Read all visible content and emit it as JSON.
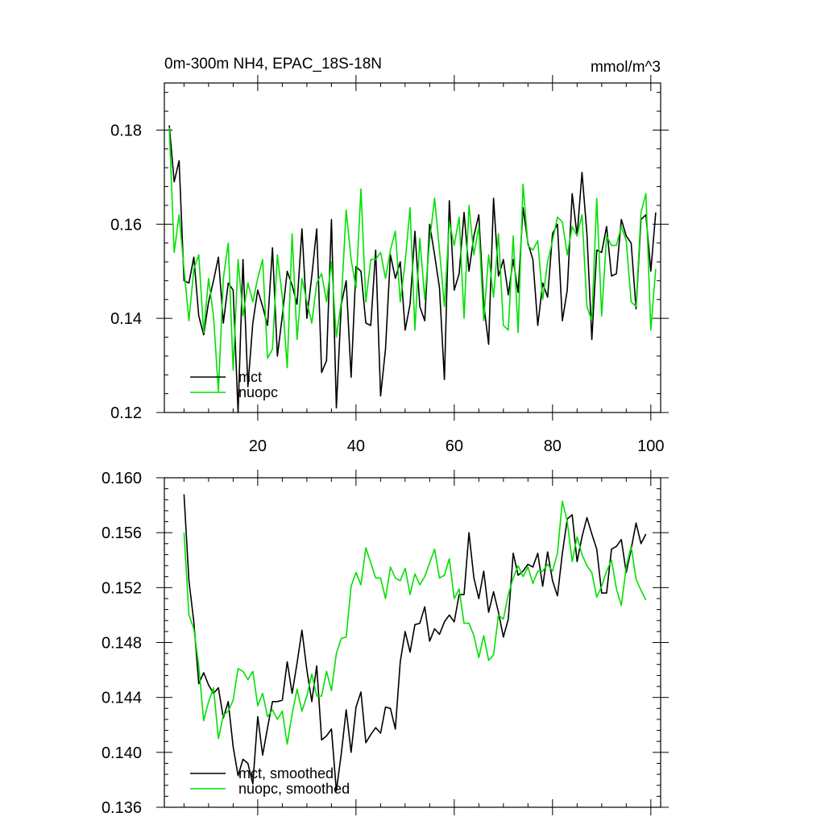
{
  "chart_data": [
    {
      "type": "line",
      "title": "0m-300m NH4, EPAC_18S-18N",
      "units": "mmol/m^3",
      "xlabel": "",
      "ylabel": "",
      "xlim": [
        1,
        102
      ],
      "ylim": [
        0.12,
        0.19
      ],
      "xticks": [
        20,
        40,
        60,
        80,
        100
      ],
      "xtick_labels": [
        "20",
        "40",
        "60",
        "80",
        "100"
      ],
      "yticks": [
        0.12,
        0.14,
        0.16,
        0.18
      ],
      "ytick_labels": [
        "0.12",
        "0.14",
        "0.16",
        "0.18"
      ],
      "legend_position": "bottom-left",
      "colors": {
        "mct": "#000000",
        "nuopc": "#00e000"
      },
      "series": [
        {
          "name": "mct",
          "color": "#000000",
          "x_start": 2,
          "values": [
            0.181,
            0.169,
            0.1735,
            0.148,
            0.1475,
            0.153,
            0.1405,
            0.1365,
            0.1435,
            0.148,
            0.153,
            0.139,
            0.1475,
            0.146,
            0.12,
            0.1525,
            0.1255,
            0.139,
            0.146,
            0.1425,
            0.1385,
            0.155,
            0.132,
            0.1405,
            0.15,
            0.147,
            0.143,
            0.159,
            0.14,
            0.149,
            0.159,
            0.1285,
            0.131,
            0.161,
            0.121,
            0.143,
            0.148,
            0.1275,
            0.151,
            0.15,
            0.139,
            0.1385,
            0.1545,
            0.1235,
            0.1335,
            0.1535,
            0.1485,
            0.152,
            0.1375,
            0.143,
            0.1585,
            0.1425,
            0.1395,
            0.16,
            0.1535,
            0.1465,
            0.127,
            0.165,
            0.146,
            0.1495,
            0.1625,
            0.15,
            0.1575,
            0.162,
            0.143,
            0.1345,
            0.1655,
            0.149,
            0.1525,
            0.145,
            0.1525,
            0.1455,
            0.1635,
            0.156,
            0.1525,
            0.1385,
            0.1475,
            0.1445,
            0.158,
            0.16,
            0.1395,
            0.146,
            0.1665,
            0.1575,
            0.171,
            0.158,
            0.1355,
            0.1545,
            0.154,
            0.1595,
            0.149,
            0.1495,
            0.161,
            0.1575,
            0.156,
            0.142,
            0.161,
            0.162,
            0.15,
            0.1625
          ]
        },
        {
          "name": "nuopc",
          "color": "#00e000",
          "x_start": 2,
          "values": [
            0.1805,
            0.154,
            0.162,
            0.1505,
            0.1395,
            0.1505,
            0.1535,
            0.137,
            0.1485,
            0.1405,
            0.1245,
            0.1485,
            0.156,
            0.129,
            0.1525,
            0.1405,
            0.1475,
            0.1435,
            0.1485,
            0.1525,
            0.1315,
            0.1335,
            0.1535,
            0.1445,
            0.1295,
            0.158,
            0.1355,
            0.1485,
            0.1435,
            0.139,
            0.1475,
            0.1495,
            0.1435,
            0.152,
            0.136,
            0.1435,
            0.163,
            0.1525,
            0.1465,
            0.1675,
            0.1435,
            0.1525,
            0.1525,
            0.154,
            0.1485,
            0.1545,
            0.1585,
            0.1435,
            0.152,
            0.1635,
            0.1375,
            0.157,
            0.144,
            0.1565,
            0.1655,
            0.1545,
            0.1425,
            0.1605,
            0.1555,
            0.1615,
            0.14,
            0.164,
            0.1535,
            0.1595,
            0.1395,
            0.1535,
            0.1445,
            0.158,
            0.1385,
            0.1375,
            0.1575,
            0.137,
            0.1685,
            0.1555,
            0.1545,
            0.1565,
            0.144,
            0.152,
            0.1565,
            0.1615,
            0.1605,
            0.1535,
            0.1595,
            0.1575,
            0.162,
            0.1425,
            0.1395,
            0.1655,
            0.1405,
            0.1575,
            0.1555,
            0.1555,
            0.1595,
            0.1565,
            0.1435,
            0.1425,
            0.1625,
            0.1665,
            0.1375,
            0.1505
          ]
        }
      ]
    },
    {
      "type": "line",
      "title": "",
      "xlabel": "",
      "ylabel": "",
      "xlim": [
        1,
        102
      ],
      "ylim": [
        0.136,
        0.16
      ],
      "xticks": [
        20,
        40,
        60,
        80,
        100
      ],
      "xtick_labels": [],
      "yticks": [
        0.136,
        0.14,
        0.144,
        0.148,
        0.152,
        0.156,
        0.16
      ],
      "ytick_labels": [
        "0.136",
        "0.140",
        "0.144",
        "0.148",
        "0.152",
        "0.156",
        "0.160"
      ],
      "legend_position": "bottom-left",
      "colors": {
        "mct": "#000000",
        "nuopc": "#00e000"
      },
      "series": [
        {
          "name": "mct, smoothed",
          "color": "#000000",
          "x_start": 5,
          "values": [
            0.1588,
            0.1525,
            0.1495,
            0.145,
            0.1458,
            0.1449,
            0.1443,
            0.1447,
            0.1425,
            0.1437,
            0.1404,
            0.1383,
            0.1395,
            0.1392,
            0.1377,
            0.1426,
            0.1398,
            0.1418,
            0.1437,
            0.1437,
            0.1438,
            0.1466,
            0.1443,
            0.1465,
            0.1489,
            0.146,
            0.1437,
            0.1463,
            0.1409,
            0.1412,
            0.1417,
            0.1372,
            0.1399,
            0.1431,
            0.14,
            0.1433,
            0.1444,
            0.1407,
            0.1413,
            0.1418,
            0.1414,
            0.1433,
            0.1432,
            0.1417,
            0.1466,
            0.1488,
            0.1473,
            0.1493,
            0.1494,
            0.1506,
            0.1481,
            0.149,
            0.1486,
            0.1495,
            0.15,
            0.1495,
            0.1515,
            0.1515,
            0.156,
            0.1527,
            0.1512,
            0.1532,
            0.1502,
            0.1517,
            0.1502,
            0.1484,
            0.1497,
            0.1545,
            0.1529,
            0.1532,
            0.1537,
            0.1535,
            0.1545,
            0.1521,
            0.1546,
            0.1525,
            0.1514,
            0.1545,
            0.157,
            0.1573,
            0.1539,
            0.1557,
            0.1571,
            0.1559,
            0.1548,
            0.1516,
            0.1516,
            0.1548,
            0.155,
            0.1555,
            0.1531,
            0.1548,
            0.1567,
            0.1552,
            0.1559
          ]
        },
        {
          "name": "nuopc, smoothed",
          "color": "#00e000",
          "x_start": 5,
          "values": [
            0.156,
            0.15,
            0.149,
            0.1463,
            0.1423,
            0.1437,
            0.1447,
            0.141,
            0.1427,
            0.143,
            0.1438,
            0.1461,
            0.1459,
            0.1453,
            0.1459,
            0.1434,
            0.1443,
            0.1426,
            0.1431,
            0.1424,
            0.143,
            0.1406,
            0.1428,
            0.1446,
            0.143,
            0.1441,
            0.1457,
            0.1441,
            0.1441,
            0.1459,
            0.1445,
            0.1472,
            0.1483,
            0.1484,
            0.1521,
            0.1531,
            0.1522,
            0.1549,
            0.1538,
            0.1527,
            0.1527,
            0.1512,
            0.1535,
            0.1527,
            0.1525,
            0.1534,
            0.1515,
            0.153,
            0.1522,
            0.1528,
            0.1538,
            0.1548,
            0.1527,
            0.1529,
            0.1541,
            0.1512,
            0.1519,
            0.1494,
            0.1494,
            0.1485,
            0.1469,
            0.1485,
            0.1467,
            0.1471,
            0.15,
            0.1497,
            0.1515,
            0.1527,
            0.1536,
            0.1528,
            0.1535,
            0.1523,
            0.1532,
            0.1532,
            0.1537,
            0.1532,
            0.1545,
            0.1583,
            0.1568,
            0.1539,
            0.1557,
            0.1544,
            0.1536,
            0.1531,
            0.1513,
            0.1521,
            0.1532,
            0.154,
            0.1519,
            0.1507,
            0.1535,
            0.155,
            0.1526,
            0.1518,
            0.1511
          ]
        }
      ]
    }
  ]
}
